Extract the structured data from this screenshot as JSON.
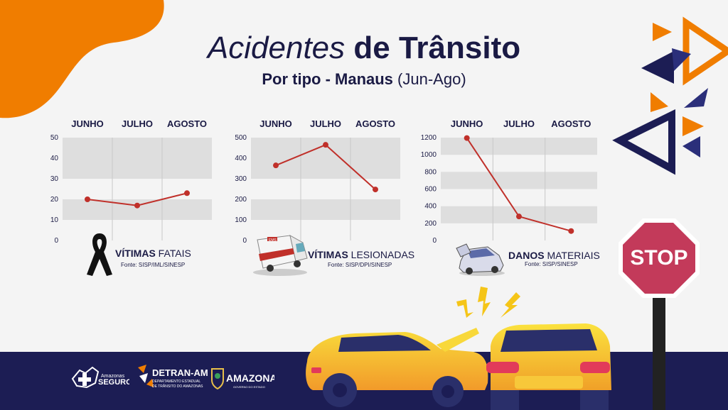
{
  "title": {
    "italic": "Acidentes",
    "bold": "de Trânsito"
  },
  "subtitle": {
    "bold": "Por tipo - Manaus",
    "rest": "(Jun-Ago)"
  },
  "colors": {
    "line": "#c0302a",
    "navy": "#1c1d54",
    "orange": "#f07d00",
    "band": "#dedede",
    "stop": "#c33a5a"
  },
  "chart_data": [
    {
      "type": "line",
      "categories": [
        "JUNHO",
        "JULHO",
        "AGOSTO"
      ],
      "values": [
        20,
        17,
        23
      ],
      "ylim": [
        0,
        50
      ],
      "yticks": [
        0,
        10,
        20,
        30,
        40,
        50
      ],
      "title_bold": "VÍTIMAS",
      "title_rest": "FATAIS",
      "source": "Fonte: SISP/IML/SINESP"
    },
    {
      "type": "line",
      "categories": [
        "JUNHO",
        "JULHO",
        "AGOSTO"
      ],
      "values": [
        365,
        465,
        248
      ],
      "ylim": [
        0,
        500
      ],
      "yticks": [
        0,
        100,
        200,
        300,
        400,
        500
      ],
      "title_bold": "VÍTIMAS",
      "title_rest": "LESIONADAS",
      "source": "Fonte: SISP/DPI/SINESP"
    },
    {
      "type": "line",
      "categories": [
        "JUNHO",
        "JULHO",
        "AGOSTO"
      ],
      "values": [
        1195,
        280,
        110
      ],
      "ylim": [
        0,
        1200
      ],
      "yticks": [
        0,
        200,
        400,
        600,
        800,
        1000,
        1200
      ],
      "title_bold": "DANOS",
      "title_rest": "MATERIAIS",
      "source": "Fonte: SISP/SINESP"
    }
  ],
  "stop_sign": "STOP",
  "logos": {
    "seguro_small": "Amazonas",
    "seguro": "SEGURO",
    "detran": "DETRAN-AM",
    "detran_sub1": "DEPARTAMENTO ESTADUAL",
    "detran_sub2": "DE TRÂNSITO DO AMAZONAS",
    "amazonas": "AMAZONAS",
    "amazonas_sub": "GOVERNO DO ESTADO"
  },
  "ambulance_text": "EMS"
}
